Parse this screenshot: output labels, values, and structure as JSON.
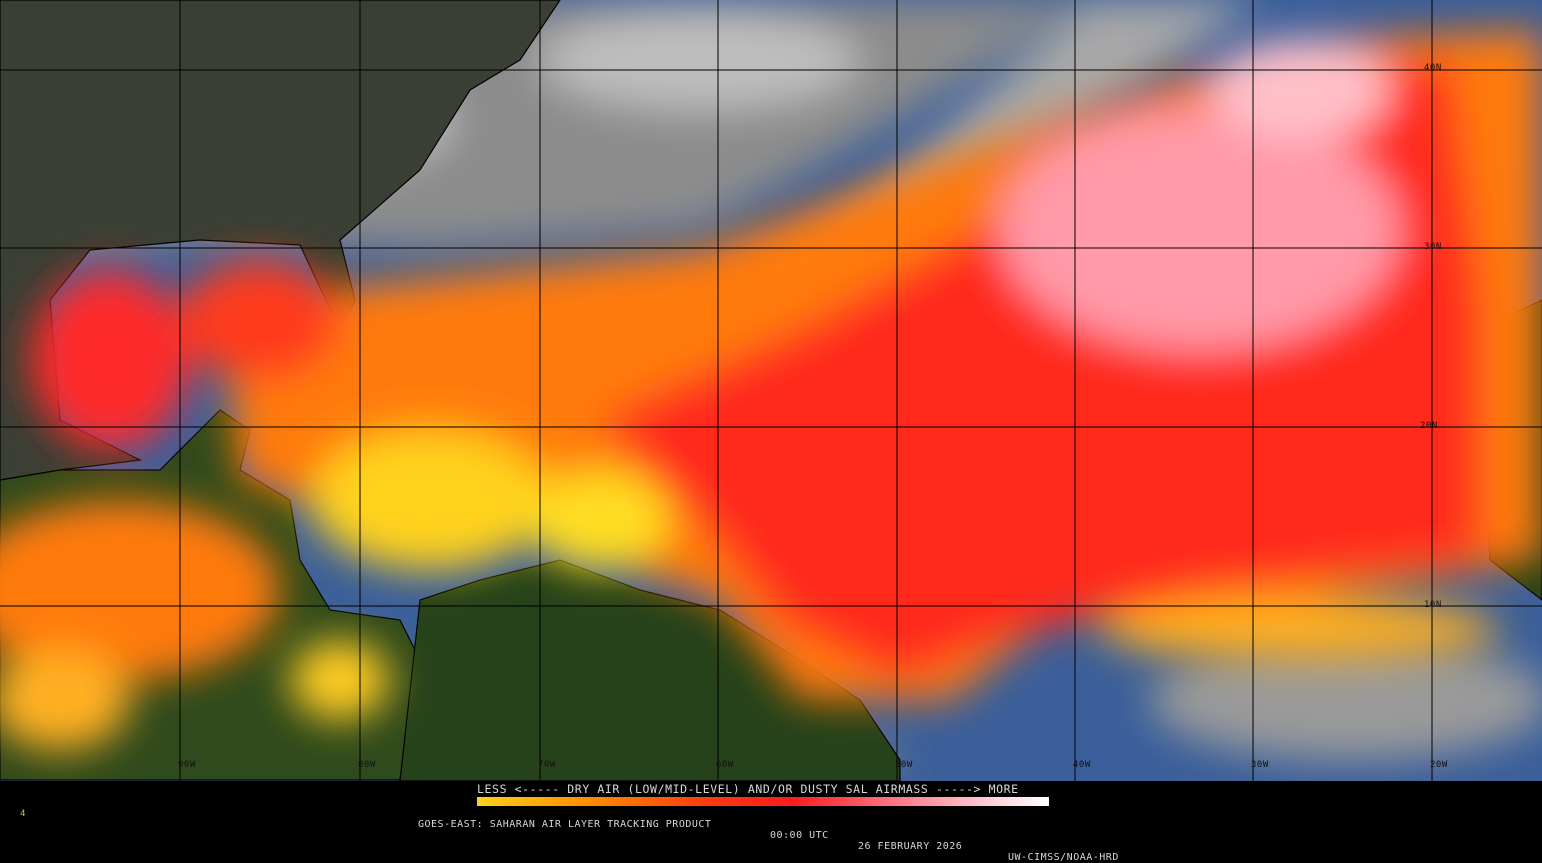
{
  "legend": {
    "title": "LESS <----- DRY AIR (LOW/MID-LEVEL) AND/OR DUSTY SAL AIRMASS -----> MORE",
    "colors": [
      "#ffd21a",
      "#ff8a00",
      "#ff3a10",
      "#ff1a1a",
      "#ff8090",
      "#ffd0d8",
      "#ffffff"
    ]
  },
  "caption": {
    "product": "GOES-EAST: SAHARAN AIR LAYER TRACKING PRODUCT",
    "time": "00:00 UTC",
    "date": "26 FEBRUARY 2026",
    "source": "UW-CIMSS/NOAA-HRD"
  },
  "corner_mark": "4",
  "grid": {
    "longitudes": [
      "90W",
      "80W",
      "70W",
      "60W",
      "50W",
      "40W",
      "30W",
      "20W"
    ],
    "latitudes": [
      "40N",
      "30N",
      "20N",
      "10N"
    ]
  },
  "colors": {
    "ocean": "#3b5f9a",
    "land": "#1f3a12",
    "cloud": "#9a9a9a",
    "dry_air_low": "#ffd21a",
    "dry_air_high": "#ff2020"
  }
}
